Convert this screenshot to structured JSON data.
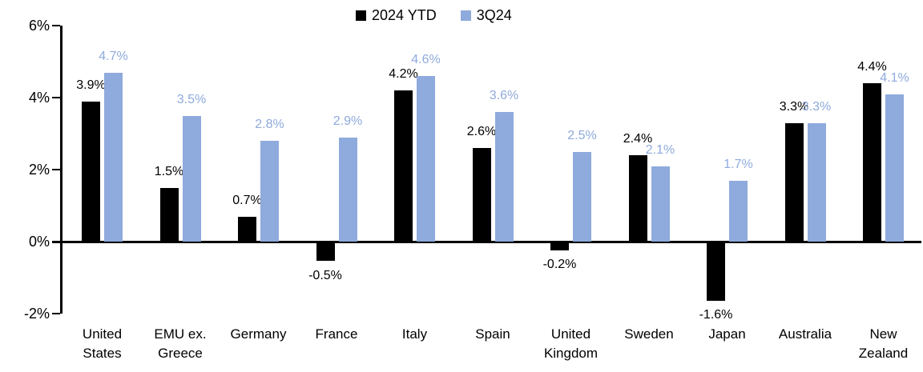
{
  "chart_data": {
    "type": "bar",
    "title": "",
    "xlabel": "",
    "ylabel": "",
    "legend_position": "top",
    "grid": false,
    "y_axis": {
      "min": -2,
      "max": 6,
      "ticks": [
        {
          "label": "6%",
          "value": 6
        },
        {
          "label": "4%",
          "value": 4
        },
        {
          "label": "2%",
          "value": 2
        },
        {
          "label": "0%",
          "value": 0
        },
        {
          "label": "-2%",
          "value": -2
        }
      ]
    },
    "categories": [
      "United States",
      "EMU ex. Greece",
      "Germany",
      "France",
      "Italy",
      "Spain",
      "United Kingdom",
      "Sweden",
      "Japan",
      "Australia",
      "New Zealand"
    ],
    "category_lines": [
      [
        "United",
        "States"
      ],
      [
        "EMU ex.",
        "Greece"
      ],
      [
        "Germany"
      ],
      [
        "France"
      ],
      [
        "Italy"
      ],
      [
        "Spain"
      ],
      [
        "United",
        "Kingdom"
      ],
      [
        "Sweden"
      ],
      [
        "Japan"
      ],
      [
        "Australia"
      ],
      [
        "New",
        "Zealand"
      ]
    ],
    "series": [
      {
        "name": "2024 YTD",
        "color": "#000000",
        "label_color": "#000000",
        "values": [
          3.9,
          1.5,
          0.7,
          -0.5,
          4.2,
          2.6,
          -0.2,
          2.4,
          -1.6,
          3.3,
          4.4
        ],
        "labels": [
          "3.9%",
          "1.5%",
          "0.7%",
          "-0.5%",
          "4.2%",
          "2.6%",
          "-0.2%",
          "2.4%",
          "-1.6%",
          "3.3%",
          "4.4%"
        ]
      },
      {
        "name": "3Q24",
        "color": "#8FAADC",
        "label_color": "#8FAADC",
        "values": [
          4.7,
          3.5,
          2.8,
          2.9,
          4.6,
          3.6,
          2.5,
          2.1,
          1.7,
          3.3,
          4.1
        ],
        "labels": [
          "4.7%",
          "3.5%",
          "2.8%",
          "2.9%",
          "4.6%",
          "3.6%",
          "2.5%",
          "2.1%",
          "1.7%",
          "3.3%",
          "4.1%"
        ]
      }
    ]
  }
}
